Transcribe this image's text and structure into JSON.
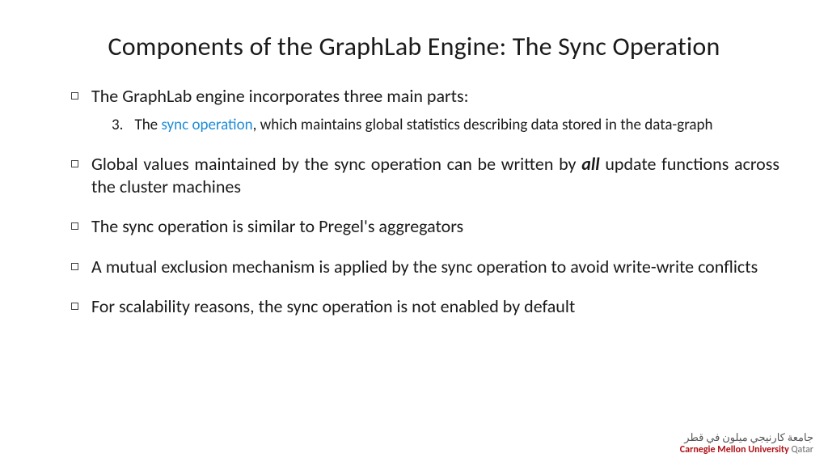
{
  "title": "Components of the GraphLab Engine: The Sync Operation",
  "bullets": [
    {
      "text": "The GraphLab engine incorporates three main parts:",
      "sub": {
        "num": "3.",
        "pre": "The ",
        "hl": "sync operation",
        "post": ", which maintains global statistics describing data stored in the data-graph"
      }
    },
    {
      "pre": "Global values maintained by the sync operation can be written by ",
      "em": "all",
      "post": " update functions across the cluster machines"
    },
    {
      "text": "The sync operation is similar to Pregel's aggregators"
    },
    {
      "text": "A mutual exclusion mechanism is applied by the sync operation to avoid write-write conflicts"
    },
    {
      "text": "For scalability reasons, the sync operation is not enabled by default"
    }
  ],
  "logo": {
    "arabic": "جامعة كارنيجي ميلون في قطر",
    "eng_red": "Carnegie Mellon University",
    "eng_gray": " Qatar"
  },
  "colors": {
    "highlight": "#1f8bd6",
    "logo_red": "#b01116",
    "text": "#1a1a1a",
    "bg": "#ffffff"
  }
}
